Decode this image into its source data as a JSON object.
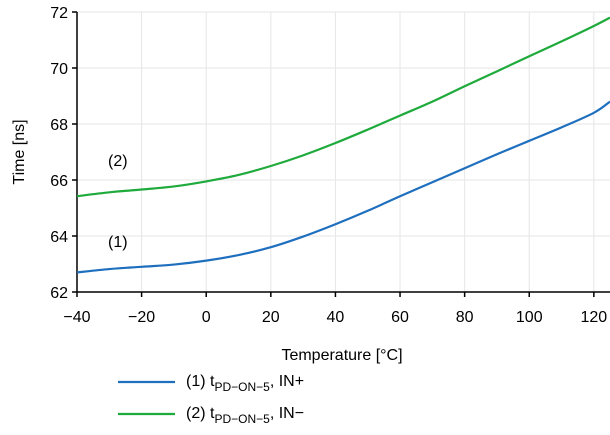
{
  "chart_data": {
    "type": "line",
    "xlabel": "Temperature [°C]",
    "ylabel": "Time [ns]",
    "xlim": [
      -40,
      125
    ],
    "ylim": [
      62,
      72
    ],
    "xticks": [
      -40,
      -20,
      0,
      20,
      40,
      60,
      80,
      100,
      120
    ],
    "yticks": [
      62,
      64,
      66,
      68,
      70,
      72
    ],
    "grid": true,
    "series": [
      {
        "name": "(1) tPD−ON−5, IN+",
        "legend_prefix": "(1) t",
        "legend_sub": "PD−ON−5",
        "legend_suffix": ", IN+",
        "curve_label": "(1)",
        "color": "#1f6fbf",
        "x": [
          -40,
          -30,
          -20,
          -10,
          0,
          10,
          20,
          30,
          40,
          50,
          60,
          70,
          80,
          90,
          100,
          110,
          120,
          125
        ],
        "y": [
          62.7,
          62.82,
          62.9,
          62.98,
          63.12,
          63.32,
          63.6,
          63.98,
          64.42,
          64.9,
          65.42,
          65.92,
          66.42,
          66.92,
          67.4,
          67.88,
          68.4,
          68.8
        ]
      },
      {
        "name": "(2) tPD−ON−5, IN−",
        "legend_prefix": "(2) t",
        "legend_sub": "PD−ON−5",
        "legend_suffix": ", IN−",
        "curve_label": "(2)",
        "color": "#1faa3c",
        "x": [
          -40,
          -30,
          -20,
          -10,
          0,
          10,
          20,
          30,
          40,
          50,
          60,
          70,
          80,
          90,
          100,
          110,
          120,
          125
        ],
        "y": [
          65.42,
          65.56,
          65.66,
          65.77,
          65.95,
          66.18,
          66.5,
          66.88,
          67.32,
          67.8,
          68.3,
          68.8,
          69.35,
          69.88,
          70.42,
          70.95,
          71.5,
          71.8
        ]
      }
    ]
  }
}
